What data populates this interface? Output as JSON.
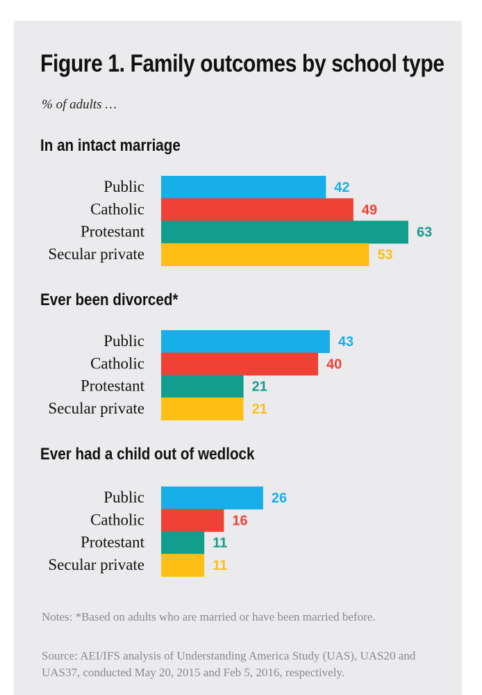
{
  "title": "Figure 1. Family outcomes by school type",
  "subtitle": "% of adults …",
  "colors": {
    "Public": "#18aeea",
    "Catholic": "#ef4135",
    "Protestant": "#119e8c",
    "Secular private": "#fdbf14"
  },
  "chart_data": [
    {
      "type": "bar",
      "orientation": "horizontal",
      "title": "In an intact marriage",
      "categories": [
        "Public",
        "Catholic",
        "Protestant",
        "Secular private"
      ],
      "values": [
        42,
        49,
        63,
        53
      ],
      "xlim": [
        0,
        70
      ]
    },
    {
      "type": "bar",
      "orientation": "horizontal",
      "title": "Ever been divorced*",
      "categories": [
        "Public",
        "Catholic",
        "Protestant",
        "Secular private"
      ],
      "values": [
        43,
        40,
        21,
        21
      ],
      "xlim": [
        0,
        70
      ]
    },
    {
      "type": "bar",
      "orientation": "horizontal",
      "title": "Ever had a child out of wedlock",
      "categories": [
        "Public",
        "Catholic",
        "Protestant",
        "Secular private"
      ],
      "values": [
        26,
        16,
        11,
        11
      ],
      "xlim": [
        0,
        70
      ]
    }
  ],
  "notes": "Notes: *Based on adults who are married or have been married before.",
  "source": "Source: AEI/IFS analysis of Understanding America Study (UAS), UAS20 and UAS37, conducted May 20, 2015 and Feb 5, 2016, respectively."
}
